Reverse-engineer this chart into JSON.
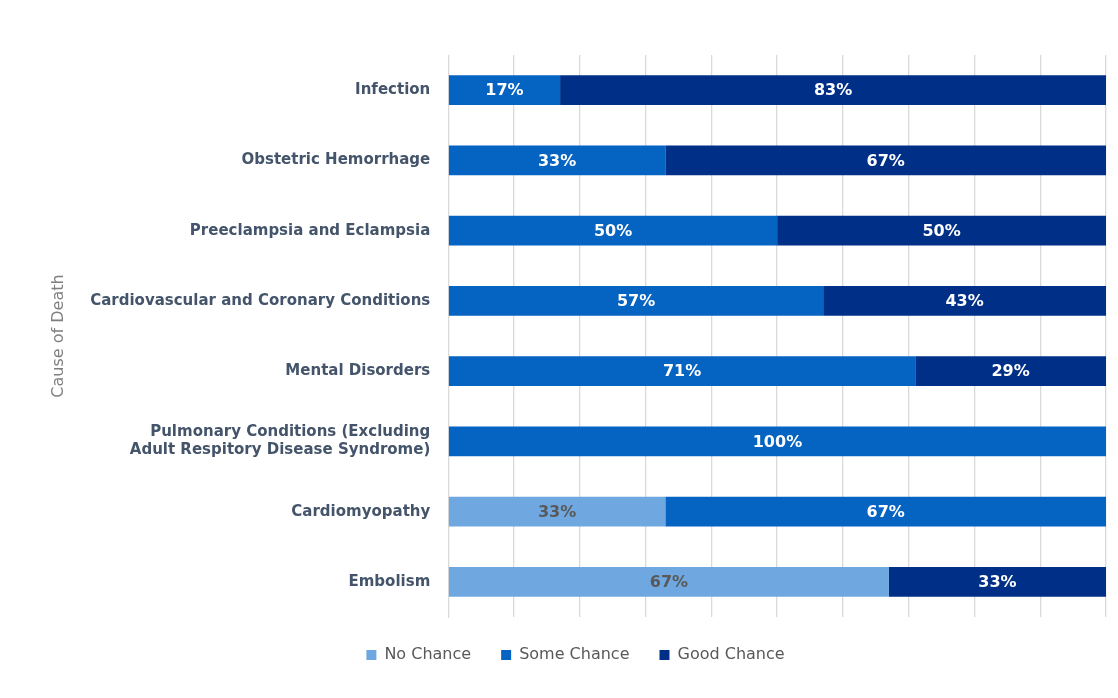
{
  "chart_data": {
    "type": "bar",
    "orientation": "horizontal",
    "stacked": true,
    "ylabel": "Cause of Death",
    "categories": [
      "Infection",
      "Obstetric Hemorrhage",
      "Preeclampsia and Eclampsia",
      "Cardiovascular and Coronary Conditions",
      "Mental Disorders",
      "Pulmonary Conditions (Excluding Adult Respitory Disease Syndrome)",
      "Cardiomyopathy",
      "Embolism"
    ],
    "series": [
      {
        "name": "No Chance",
        "color": "#6fa8e0",
        "values": [
          0,
          0,
          0,
          0,
          0,
          0,
          33,
          67
        ],
        "value_labels": [
          null,
          null,
          null,
          null,
          null,
          null,
          "33%",
          "67%"
        ]
      },
      {
        "name": "Some Chance",
        "color": "#0563c1",
        "values": [
          17,
          33,
          50,
          57,
          71,
          100,
          67,
          0
        ],
        "value_labels": [
          "17%",
          "33%",
          "50%",
          "57%",
          "71%",
          "100%",
          "67%",
          null
        ]
      },
      {
        "name": "Good Chance",
        "color": "#002f87",
        "values": [
          83,
          67,
          50,
          43,
          29,
          0,
          0,
          33
        ],
        "value_labels": [
          "83%",
          "67%",
          "50%",
          "43%",
          "29%",
          null,
          null,
          "33%"
        ]
      }
    ],
    "xlim": [
      0,
      100
    ],
    "xticks": [
      {
        "value": 0,
        "label": null
      },
      {
        "value": 10,
        "label": null
      },
      {
        "value": 20,
        "label": null
      },
      {
        "value": 30,
        "label": null
      },
      {
        "value": 40,
        "label": null
      },
      {
        "value": 50,
        "label": null
      },
      {
        "value": 60,
        "label": null
      },
      {
        "value": 70,
        "label": null
      },
      {
        "value": 80,
        "label": null
      },
      {
        "value": 90,
        "label": null
      },
      {
        "value": 100,
        "label": null
      }
    ],
    "grid": "x",
    "legend": "bottom",
    "tick_labels": "y"
  }
}
